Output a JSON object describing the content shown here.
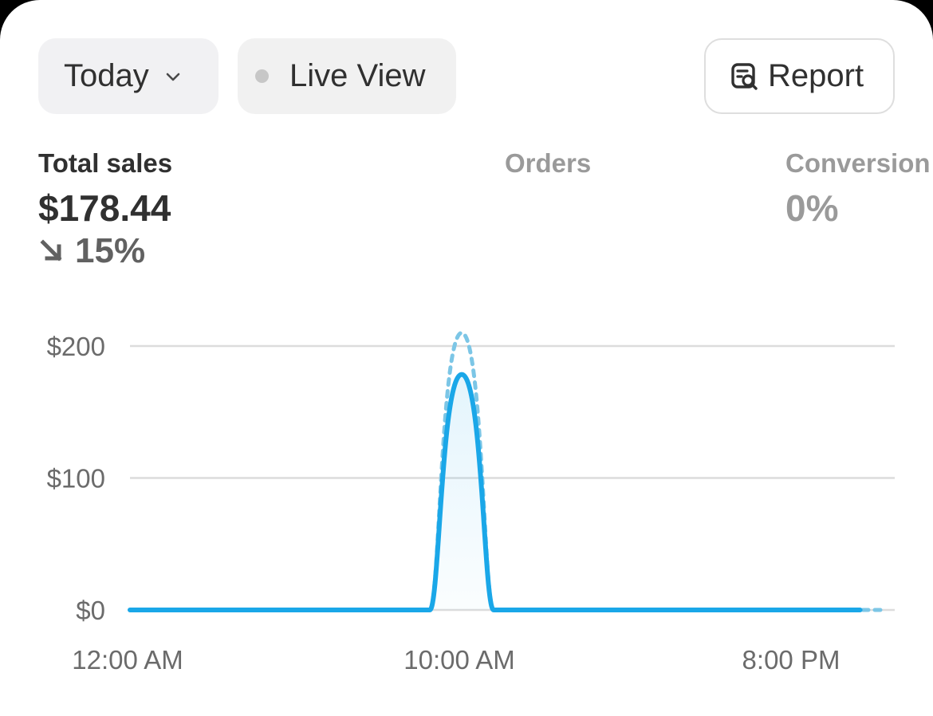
{
  "toolbar": {
    "period_label": "Today",
    "live_view_label": "Live View",
    "report_label": "Report"
  },
  "metrics": {
    "total_sales": {
      "label": "Total sales",
      "value": "$178.44",
      "change": "15%",
      "change_direction": "down"
    },
    "orders": {
      "label": "Orders"
    },
    "conversion": {
      "label": "Conversion",
      "value": "0%"
    }
  },
  "colors": {
    "accent": "#1aa7e8",
    "comparison": "#7cc6e6"
  },
  "chart_data": {
    "type": "line",
    "x_labels": [
      "12:00 AM",
      "10:00 AM",
      "8:00 PM"
    ],
    "y_ticks": [
      "$200",
      "$100",
      "$0"
    ],
    "ylim": [
      0,
      200
    ],
    "series": [
      {
        "values": [
          0,
          0,
          0,
          0,
          0,
          0,
          0,
          0,
          0,
          0,
          178.44,
          0,
          0,
          0,
          0,
          0,
          0,
          0,
          0,
          0,
          0,
          0
        ]
      },
      {
        "values": [
          0,
          0,
          0,
          0,
          0,
          0,
          0,
          0,
          0,
          0,
          210,
          0,
          0,
          0,
          0,
          0,
          0,
          0,
          0,
          0,
          0,
          0,
          0
        ]
      }
    ],
    "grid": true
  }
}
